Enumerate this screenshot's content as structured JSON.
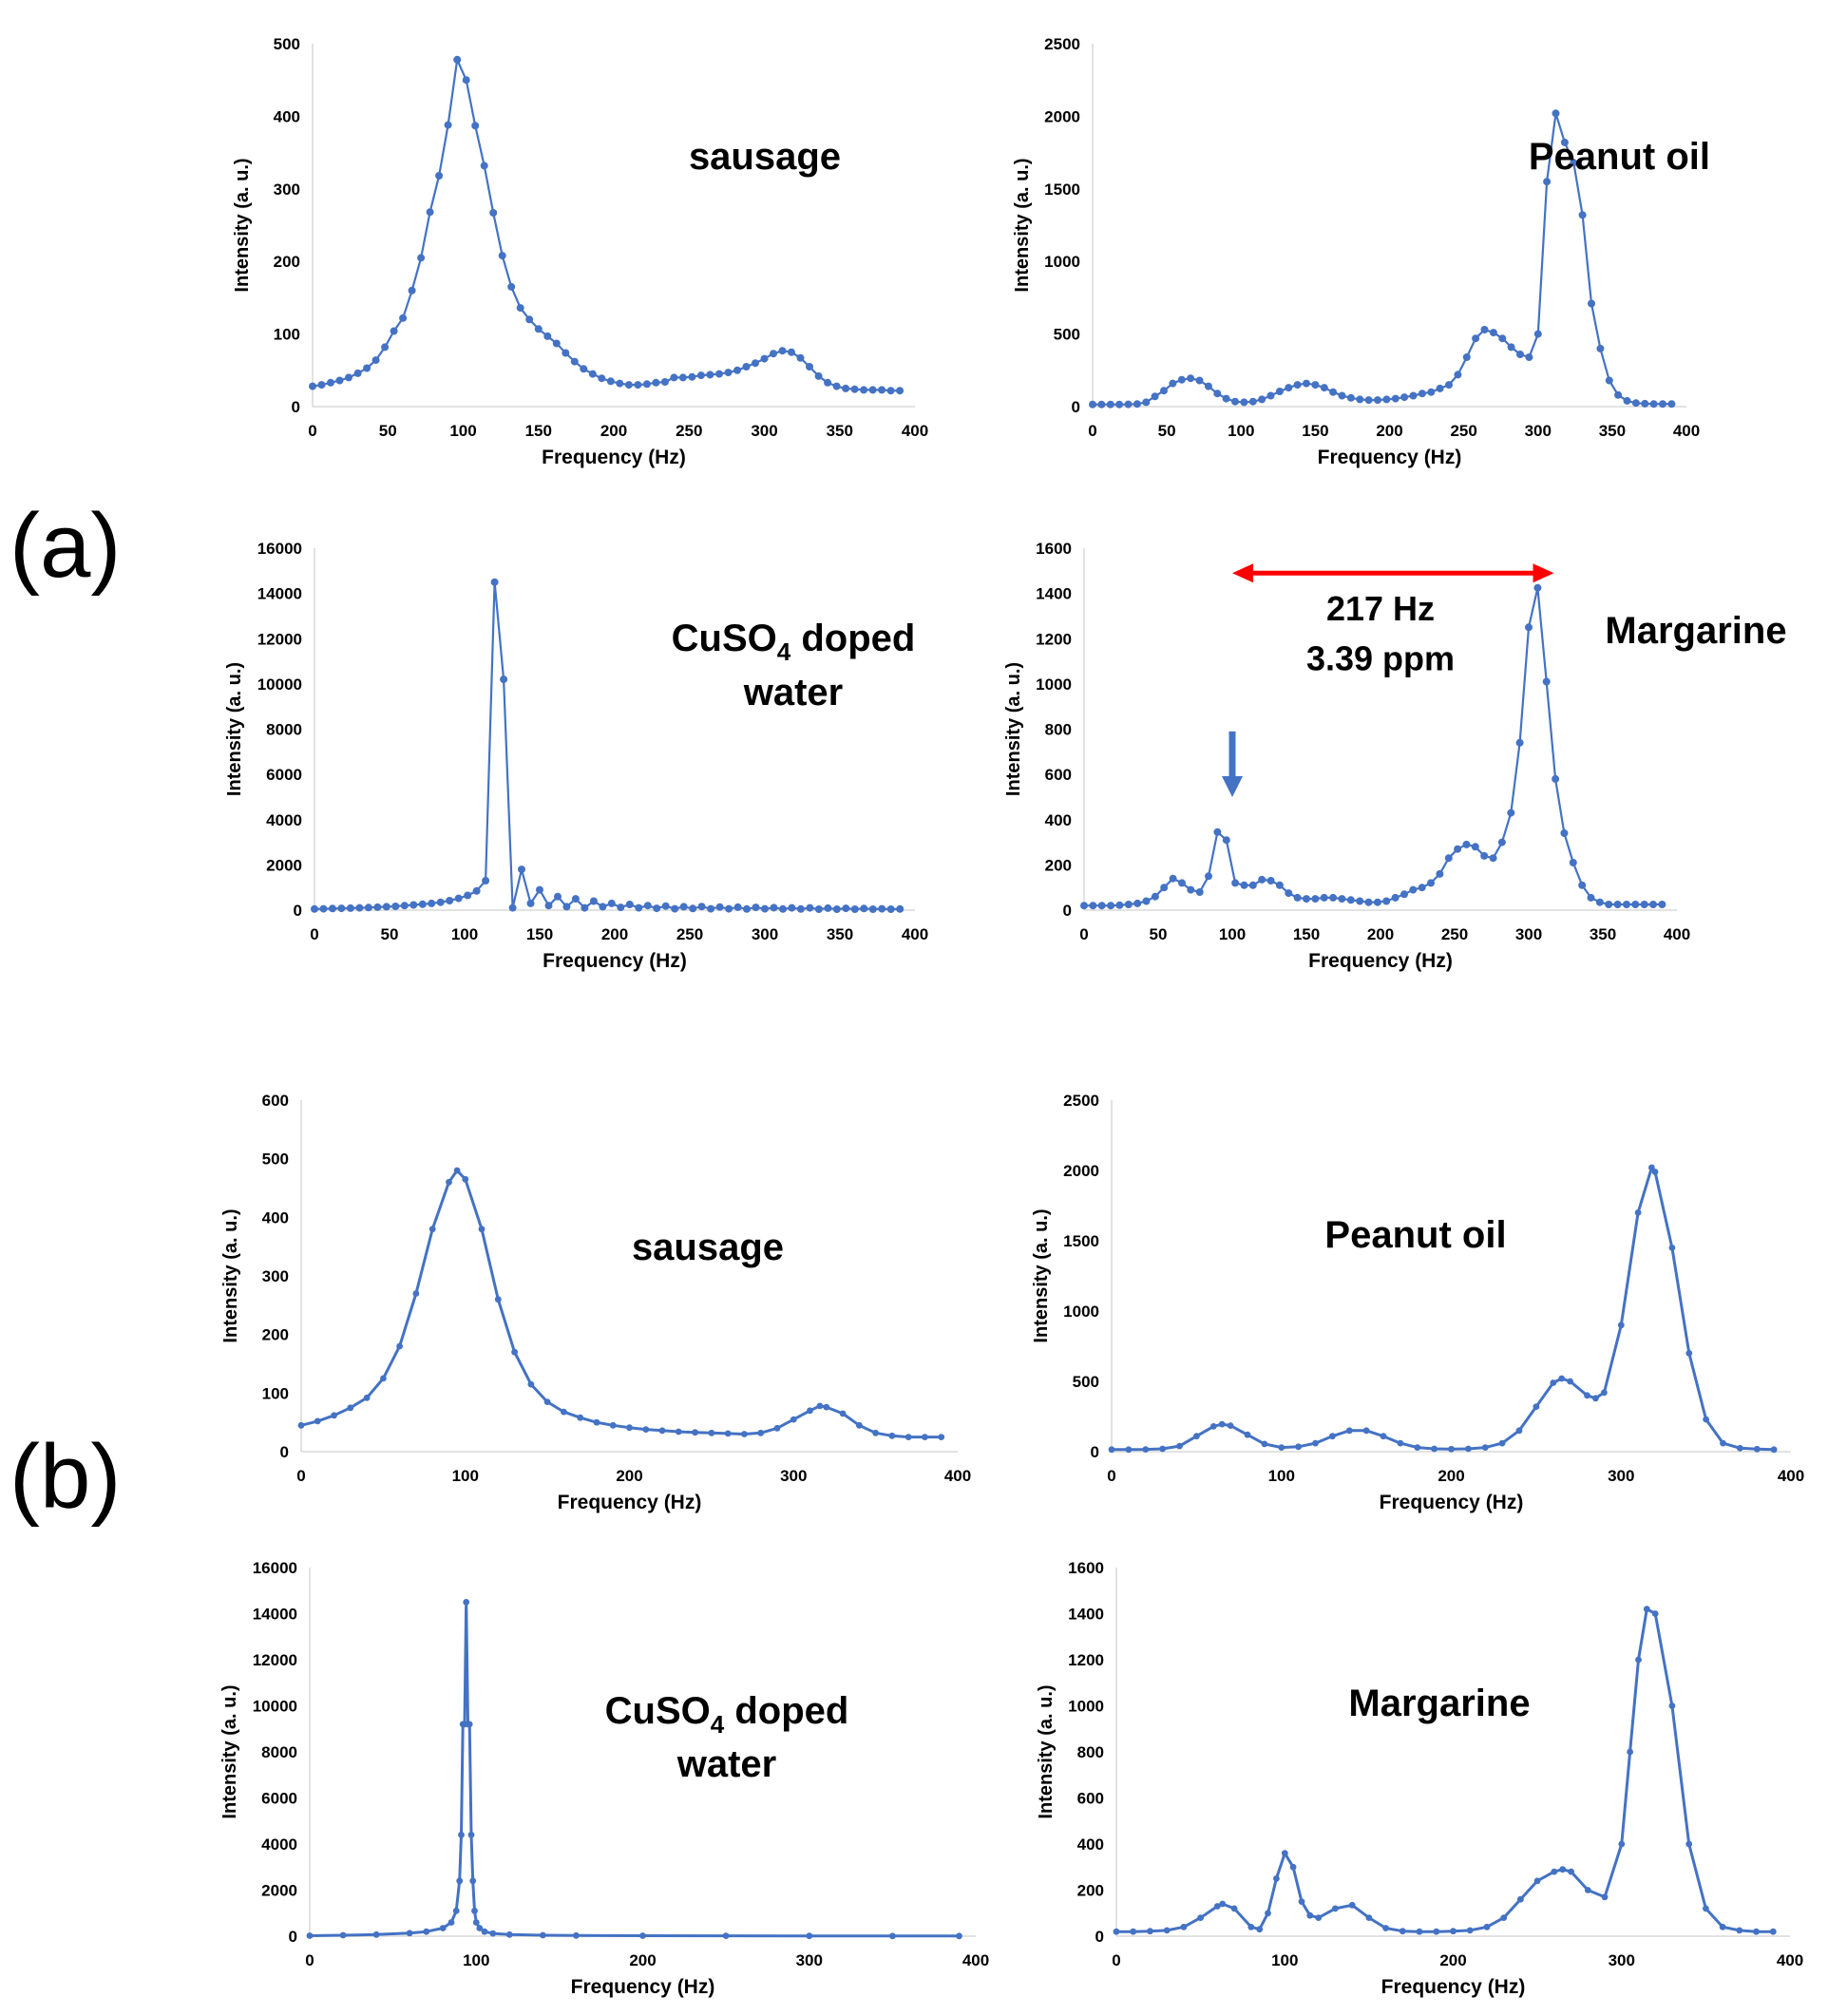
{
  "figure": {
    "panel_labels": [
      "(a)",
      "(b)"
    ],
    "colors": {
      "series": "#4472C4",
      "arrow_red": "#FF0000",
      "arrow_blue": "#4472C4",
      "text": "#000000",
      "axis": "#D9D9D9"
    }
  },
  "chart_data": [
    {
      "id": "a1",
      "type": "line",
      "title": "sausage",
      "xlabel": "Frequency (Hz)",
      "ylabel": "Intensity (a. u.)",
      "xlim": [
        0,
        400
      ],
      "ylim": [
        0,
        500
      ],
      "xticks": [
        0,
        50,
        100,
        150,
        200,
        250,
        300,
        350,
        400
      ],
      "yticks": [
        0,
        100,
        200,
        300,
        400,
        500
      ],
      "x": [
        0,
        6,
        12,
        18,
        24,
        30,
        36,
        42,
        48,
        54,
        60,
        66,
        72,
        78,
        84,
        90,
        96,
        102,
        108,
        114,
        120,
        126,
        132,
        138,
        144,
        150,
        156,
        162,
        168,
        174,
        180,
        186,
        192,
        198,
        204,
        210,
        216,
        222,
        228,
        234,
        240,
        246,
        252,
        258,
        264,
        270,
        276,
        282,
        288,
        294,
        300,
        306,
        312,
        318,
        324,
        330,
        336,
        342,
        348,
        354,
        360,
        366,
        372,
        378,
        384,
        390
      ],
      "series": [
        {
          "name": "sausage",
          "values": [
            28,
            30,
            33,
            36,
            40,
            46,
            53,
            64,
            82,
            104,
            122,
            160,
            205,
            268,
            318,
            388,
            478,
            450,
            387,
            332,
            267,
            208,
            165,
            136,
            120,
            107,
            97,
            87,
            74,
            62,
            52,
            45,
            39,
            35,
            32,
            30,
            30,
            31,
            33,
            34,
            40,
            40,
            41,
            43,
            44,
            45,
            47,
            50,
            55,
            60,
            66,
            73,
            77,
            75,
            67,
            55,
            42,
            33,
            28,
            25,
            24,
            23,
            23,
            23,
            22,
            22
          ]
        }
      ],
      "annotations": []
    },
    {
      "id": "a2",
      "type": "line",
      "title": "Peanut oil",
      "xlabel": "Frequency (Hz)",
      "ylabel": "Intensity (a. u.)",
      "xlim": [
        0,
        400
      ],
      "ylim": [
        0,
        2500
      ],
      "xticks": [
        0,
        50,
        100,
        150,
        200,
        250,
        300,
        350,
        400
      ],
      "yticks": [
        0,
        500,
        1000,
        1500,
        2000,
        2500
      ],
      "x": [
        0,
        6,
        12,
        18,
        24,
        30,
        36,
        42,
        48,
        54,
        60,
        66,
        72,
        78,
        84,
        90,
        96,
        102,
        108,
        114,
        120,
        126,
        132,
        138,
        144,
        150,
        156,
        162,
        168,
        174,
        180,
        186,
        192,
        198,
        204,
        210,
        216,
        222,
        228,
        234,
        240,
        246,
        252,
        258,
        264,
        270,
        276,
        282,
        288,
        294,
        300,
        306,
        312,
        318,
        324,
        330,
        336,
        342,
        348,
        354,
        360,
        366,
        372,
        378,
        384,
        390
      ],
      "series": [
        {
          "name": "Peanut oil",
          "values": [
            15,
            15,
            15,
            15,
            16,
            18,
            30,
            70,
            110,
            160,
            185,
            195,
            180,
            140,
            90,
            55,
            35,
            30,
            35,
            50,
            75,
            105,
            130,
            150,
            160,
            150,
            130,
            100,
            75,
            60,
            50,
            45,
            45,
            50,
            55,
            65,
            75,
            90,
            100,
            125,
            150,
            220,
            340,
            470,
            530,
            510,
            470,
            410,
            360,
            340,
            500,
            1550,
            2020,
            1820,
            1680,
            1320,
            710,
            400,
            180,
            80,
            40,
            25,
            20,
            18,
            18,
            18
          ]
        }
      ],
      "annotations": []
    },
    {
      "id": "a3",
      "type": "line",
      "title": "CuSO4 doped water",
      "xlabel": "Frequency (Hz)",
      "ylabel": "Intensity (a. u.)",
      "xlim": [
        0,
        400
      ],
      "ylim": [
        0,
        16000
      ],
      "xticks": [
        0,
        50,
        100,
        150,
        200,
        250,
        300,
        350,
        400
      ],
      "yticks": [
        0,
        2000,
        4000,
        6000,
        8000,
        10000,
        12000,
        14000,
        16000
      ],
      "x": [
        0,
        6,
        12,
        18,
        24,
        30,
        36,
        42,
        48,
        54,
        60,
        66,
        72,
        78,
        84,
        90,
        96,
        102,
        108,
        114,
        120,
        126,
        132,
        138,
        144,
        150,
        156,
        162,
        168,
        174,
        180,
        186,
        192,
        198,
        204,
        210,
        216,
        222,
        228,
        234,
        240,
        246,
        252,
        258,
        264,
        270,
        276,
        282,
        288,
        294,
        300,
        306,
        312,
        318,
        324,
        330,
        336,
        342,
        348,
        354,
        360,
        366,
        372,
        378,
        384,
        390
      ],
      "series": [
        {
          "name": "CuSO4 doped water",
          "values": [
            50,
            60,
            70,
            80,
            90,
            100,
            115,
            130,
            150,
            170,
            200,
            230,
            260,
            300,
            350,
            420,
            520,
            650,
            850,
            1300,
            14500,
            10200,
            100,
            1800,
            300,
            900,
            200,
            600,
            150,
            500,
            100,
            400,
            150,
            300,
            120,
            250,
            100,
            200,
            80,
            180,
            60,
            150,
            70,
            160,
            60,
            140,
            60,
            130,
            50,
            120,
            60,
            110,
            50,
            100,
            50,
            100,
            40,
            90,
            40,
            80,
            40,
            70,
            40,
            60,
            40,
            50
          ]
        }
      ],
      "annotations": []
    },
    {
      "id": "a4",
      "type": "line",
      "title": "Margarine",
      "xlabel": "Frequency (Hz)",
      "ylabel": "Intensity (a. u.)",
      "xlim": [
        0,
        400
      ],
      "ylim": [
        0,
        1600
      ],
      "xticks": [
        0,
        50,
        100,
        150,
        200,
        250,
        300,
        350,
        400
      ],
      "yticks": [
        0,
        200,
        400,
        600,
        800,
        1000,
        1200,
        1400,
        1600
      ],
      "x": [
        0,
        6,
        12,
        18,
        24,
        30,
        36,
        42,
        48,
        54,
        60,
        66,
        72,
        78,
        84,
        90,
        96,
        102,
        108,
        114,
        120,
        126,
        132,
        138,
        144,
        150,
        156,
        162,
        168,
        174,
        180,
        186,
        192,
        198,
        204,
        210,
        216,
        222,
        228,
        234,
        240,
        246,
        252,
        258,
        264,
        270,
        276,
        282,
        288,
        294,
        300,
        306,
        312,
        318,
        324,
        330,
        336,
        342,
        348,
        354,
        360,
        366,
        372,
        378,
        384,
        390
      ],
      "series": [
        {
          "name": "Margarine",
          "values": [
            20,
            20,
            20,
            20,
            22,
            25,
            30,
            40,
            60,
            100,
            140,
            120,
            90,
            80,
            150,
            345,
            310,
            120,
            110,
            110,
            135,
            130,
            110,
            75,
            55,
            50,
            50,
            55,
            55,
            50,
            45,
            40,
            35,
            35,
            40,
            55,
            70,
            90,
            100,
            120,
            160,
            230,
            270,
            290,
            280,
            240,
            230,
            300,
            430,
            740,
            1250,
            1425,
            1010,
            580,
            340,
            210,
            110,
            55,
            35,
            25,
            25,
            25,
            25,
            25,
            25,
            25
          ]
        }
      ],
      "annotations": [
        {
          "type": "double-arrow",
          "color": "#FF0000",
          "x_from": 100,
          "x_to": 317,
          "y": 1490
        },
        {
          "type": "text",
          "text": "217 Hz",
          "x": 200,
          "y": 1280
        },
        {
          "type": "text",
          "text": "3.39 ppm",
          "x": 200,
          "y": 1060
        },
        {
          "type": "down-arrow",
          "color": "#4472C4",
          "x": 100,
          "y_from": 790,
          "y_to": 500
        }
      ]
    },
    {
      "id": "b1",
      "type": "line",
      "title": "sausage",
      "xlabel": "Frequency (Hz)",
      "ylabel": "Intensity (a. u.)",
      "xlim": [
        0,
        400
      ],
      "ylim": [
        0,
        600
      ],
      "xticks": [
        0,
        100,
        200,
        300,
        400
      ],
      "yticks": [
        0,
        100,
        200,
        300,
        400,
        500,
        600
      ],
      "x": [
        0,
        10,
        20,
        30,
        40,
        50,
        60,
        70,
        80,
        90,
        95,
        100,
        110,
        120,
        130,
        140,
        150,
        160,
        170,
        180,
        190,
        200,
        210,
        220,
        230,
        240,
        250,
        260,
        270,
        280,
        290,
        300,
        310,
        316,
        320,
        330,
        340,
        350,
        360,
        370,
        380,
        390
      ],
      "series": [
        {
          "name": "sausage",
          "values": [
            45,
            52,
            62,
            75,
            92,
            125,
            180,
            270,
            380,
            460,
            480,
            465,
            380,
            260,
            170,
            115,
            85,
            68,
            58,
            50,
            45,
            41,
            38,
            36,
            34,
            33,
            32,
            31,
            30,
            32,
            40,
            55,
            70,
            78,
            76,
            65,
            45,
            32,
            27,
            25,
            25,
            25
          ]
        }
      ],
      "annotations": []
    },
    {
      "id": "b2",
      "type": "line",
      "title": "Peanut oil",
      "xlabel": "Frequency (Hz)",
      "ylabel": "Intensity (a. u.)",
      "xlim": [
        0,
        400
      ],
      "ylim": [
        0,
        2500
      ],
      "xticks": [
        0,
        100,
        200,
        300,
        400
      ],
      "yticks": [
        0,
        500,
        1000,
        1500,
        2000,
        2500
      ],
      "x": [
        0,
        10,
        20,
        30,
        40,
        50,
        60,
        65,
        70,
        80,
        90,
        100,
        110,
        120,
        130,
        140,
        150,
        160,
        170,
        180,
        190,
        200,
        210,
        220,
        230,
        240,
        250,
        260,
        265,
        270,
        280,
        285,
        290,
        300,
        310,
        318,
        320,
        330,
        340,
        350,
        360,
        370,
        380,
        390
      ],
      "series": [
        {
          "name": "Peanut oil",
          "values": [
            15,
            15,
            16,
            20,
            40,
            110,
            180,
            195,
            185,
            120,
            55,
            30,
            35,
            60,
            110,
            150,
            150,
            110,
            60,
            30,
            20,
            18,
            20,
            30,
            60,
            150,
            320,
            490,
            520,
            500,
            400,
            380,
            420,
            900,
            1700,
            2020,
            1990,
            1450,
            700,
            230,
            60,
            25,
            18,
            15
          ]
        }
      ],
      "annotations": []
    },
    {
      "id": "b3",
      "type": "line",
      "title": "CuSO4 doped water",
      "xlabel": "Frequency (Hz)",
      "ylabel": "Intensity (a. u.)",
      "xlim": [
        0,
        400
      ],
      "ylim": [
        0,
        16000
      ],
      "xticks": [
        0,
        100,
        200,
        300,
        400
      ],
      "yticks": [
        0,
        2000,
        4000,
        6000,
        8000,
        10000,
        12000,
        14000,
        16000
      ],
      "x": [
        0,
        20,
        40,
        60,
        70,
        80,
        85,
        88,
        90,
        91,
        92,
        93,
        94,
        95,
        96,
        97,
        98,
        99,
        100,
        102,
        105,
        110,
        120,
        140,
        160,
        200,
        250,
        300,
        350,
        390
      ],
      "series": [
        {
          "name": "CuSO4 doped water",
          "values": [
            20,
            40,
            70,
            130,
            200,
            350,
            600,
            1100,
            2400,
            4400,
            9200,
            9200,
            14500,
            9200,
            9200,
            4400,
            2400,
            1100,
            600,
            350,
            200,
            120,
            70,
            40,
            30,
            20,
            15,
            12,
            10,
            10
          ]
        }
      ],
      "annotations": []
    },
    {
      "id": "b4",
      "type": "line",
      "title": "Margarine",
      "xlabel": "Frequency (Hz)",
      "ylabel": "Intensity (a. u.)",
      "xlim": [
        0,
        400
      ],
      "ylim": [
        0,
        1600
      ],
      "xticks": [
        0,
        100,
        200,
        300,
        400
      ],
      "yticks": [
        0,
        200,
        400,
        600,
        800,
        1000,
        1200,
        1400,
        1600
      ],
      "x": [
        0,
        10,
        20,
        30,
        40,
        50,
        60,
        63,
        70,
        80,
        85,
        90,
        95,
        100,
        105,
        110,
        115,
        120,
        130,
        140,
        150,
        160,
        170,
        180,
        190,
        200,
        210,
        220,
        230,
        240,
        250,
        260,
        265,
        270,
        280,
        290,
        300,
        305,
        310,
        315,
        320,
        330,
        340,
        350,
        360,
        370,
        380,
        390
      ],
      "series": [
        {
          "name": "Margarine",
          "values": [
            20,
            20,
            22,
            25,
            40,
            80,
            130,
            140,
            120,
            40,
            30,
            100,
            250,
            360,
            300,
            150,
            90,
            80,
            120,
            135,
            80,
            35,
            22,
            20,
            20,
            22,
            25,
            40,
            80,
            160,
            240,
            280,
            290,
            280,
            200,
            170,
            400,
            800,
            1200,
            1420,
            1400,
            1000,
            400,
            120,
            40,
            25,
            20,
            20
          ]
        }
      ],
      "annotations": []
    }
  ]
}
